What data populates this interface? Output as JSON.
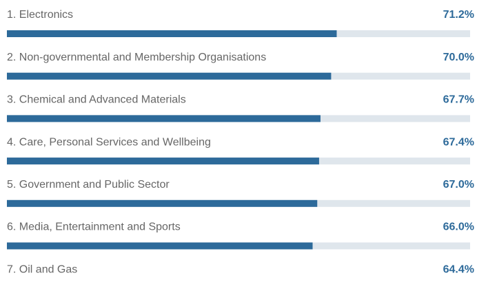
{
  "chart_data": {
    "type": "bar",
    "orientation": "horizontal",
    "categories": [
      "1. Electronics",
      "2. Non-governmental and Membership Organisations",
      "3. Chemical and Advanced Materials",
      "4. Care, Personal Services and Wellbeing",
      "5. Government and Public Sector",
      "6. Media, Entertainment and Sports",
      "7. Oil and Gas"
    ],
    "values": [
      71.2,
      70.0,
      67.7,
      67.4,
      67.0,
      66.0,
      64.4
    ],
    "value_labels": [
      "71.2%",
      "70.0%",
      "67.7%",
      "67.4%",
      "67.0%",
      "66.0%",
      "64.4%"
    ],
    "color": "#2d6a9a",
    "track_color": "#dfe6ec",
    "xlim": [
      0,
      100
    ]
  }
}
